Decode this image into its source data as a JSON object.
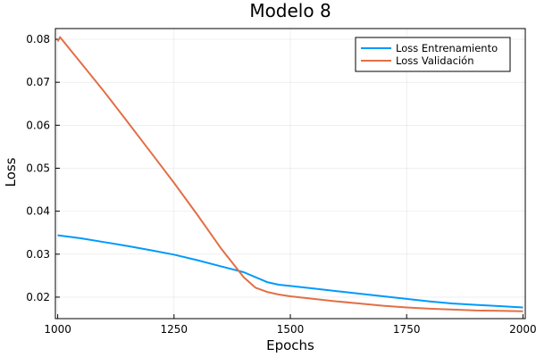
{
  "chart_data": {
    "type": "line",
    "title": "Modelo 8",
    "xlabel": "Epochs",
    "ylabel": "Loss",
    "xlim": [
      995,
      2005
    ],
    "ylim": [
      0.015,
      0.0825
    ],
    "xticks": [
      1000,
      1250,
      1500,
      1750,
      2000
    ],
    "yticks": [
      0.02,
      0.03,
      0.04,
      0.05,
      0.06,
      0.07,
      0.08
    ],
    "grid": true,
    "legend_position": "top-right",
    "series": [
      {
        "name": "Loss Entrenamiento",
        "color": "#009AFA",
        "x": [
          1000,
          1050,
          1100,
          1150,
          1200,
          1250,
          1300,
          1350,
          1400,
          1450,
          1475,
          1500,
          1550,
          1600,
          1650,
          1700,
          1750,
          1800,
          1850,
          1900,
          1950,
          2000
        ],
        "y": [
          0.0344,
          0.0337,
          0.0328,
          0.0319,
          0.0309,
          0.0299,
          0.0286,
          0.0272,
          0.0258,
          0.0235,
          0.0229,
          0.0226,
          0.022,
          0.0214,
          0.0208,
          0.0202,
          0.0196,
          0.019,
          0.0185,
          0.0182,
          0.0179,
          0.0176
        ]
      },
      {
        "name": "Loss Validación",
        "color": "#E26F46",
        "x": [
          1000,
          1005,
          1020,
          1050,
          1100,
          1150,
          1200,
          1250,
          1300,
          1350,
          1400,
          1425,
          1450,
          1475,
          1500,
          1550,
          1600,
          1650,
          1700,
          1750,
          1800,
          1850,
          1900,
          1950,
          2000
        ],
        "y": [
          0.0795,
          0.0805,
          0.0785,
          0.0745,
          0.0678,
          0.0608,
          0.0537,
          0.0466,
          0.0392,
          0.0315,
          0.0246,
          0.0222,
          0.0212,
          0.0206,
          0.0202,
          0.0196,
          0.019,
          0.0185,
          0.018,
          0.0176,
          0.0173,
          0.0171,
          0.0169,
          0.0168,
          0.0167
        ]
      }
    ]
  }
}
